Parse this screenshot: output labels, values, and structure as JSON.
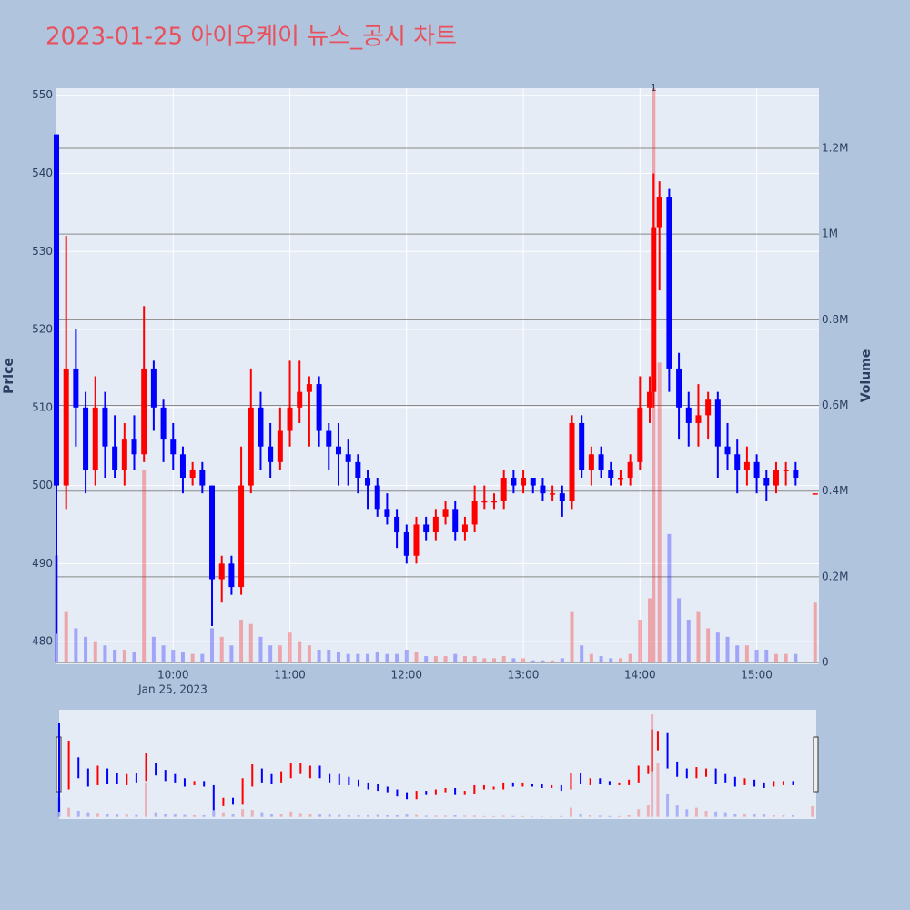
{
  "chart_data": {
    "type": "candlestick",
    "title": "2023-01-25 아이오케이 뉴스_공시 차트",
    "y_label": "Price",
    "y2_label": "Volume",
    "date_label": "Jan 25, 2023",
    "annotation": {
      "x": "14:07",
      "text": "1"
    },
    "increasing_color": "#ff0000",
    "decreasing_color": "#0000ff",
    "x": [
      "09:00",
      "09:05",
      "09:10",
      "09:15",
      "09:20",
      "09:25",
      "09:30",
      "09:35",
      "09:40",
      "09:45",
      "09:50",
      "09:55",
      "10:00",
      "10:05",
      "10:10",
      "10:15",
      "10:20",
      "10:25",
      "10:30",
      "10:35",
      "10:40",
      "10:45",
      "10:50",
      "10:55",
      "11:00",
      "11:05",
      "11:10",
      "11:15",
      "11:20",
      "11:25",
      "11:30",
      "11:35",
      "11:40",
      "11:45",
      "11:50",
      "11:55",
      "12:00",
      "12:05",
      "12:10",
      "12:15",
      "12:20",
      "12:25",
      "12:30",
      "12:35",
      "12:40",
      "12:45",
      "12:50",
      "12:55",
      "13:00",
      "13:05",
      "13:10",
      "13:15",
      "13:20",
      "13:25",
      "13:30",
      "13:35",
      "13:40",
      "13:45",
      "13:50",
      "13:55",
      "14:00",
      "14:05",
      "14:07",
      "14:10",
      "14:15",
      "14:20",
      "14:25",
      "14:30",
      "14:35",
      "14:40",
      "14:45",
      "14:50",
      "14:55",
      "15:00",
      "15:05",
      "15:10",
      "15:15",
      "15:20",
      "15:30"
    ],
    "open": [
      545,
      500,
      515,
      510,
      502,
      510,
      505,
      502,
      506,
      504,
      515,
      510,
      506,
      504,
      501,
      502,
      500,
      488,
      490,
      487,
      500,
      510,
      505,
      503,
      507,
      510,
      512,
      513,
      507,
      505,
      504,
      503,
      501,
      500,
      497,
      496,
      494,
      491,
      495,
      494,
      496,
      497,
      494,
      495,
      498,
      498,
      498,
      501,
      500,
      501,
      500,
      499,
      499,
      498,
      508,
      502,
      504,
      502,
      501,
      501,
      503,
      510,
      512,
      533,
      537,
      515,
      510,
      508,
      509,
      511,
      505,
      504,
      502,
      503,
      501,
      500,
      502,
      502,
      499
    ],
    "high": [
      545,
      532,
      520,
      512,
      514,
      512,
      509,
      508,
      509,
      523,
      516,
      511,
      508,
      505,
      503,
      503,
      500,
      491,
      491,
      505,
      515,
      512,
      508,
      510,
      516,
      516,
      514,
      514,
      508,
      508,
      506,
      504,
      502,
      501,
      499,
      497,
      495,
      496,
      496,
      497,
      498,
      498,
      496,
      500,
      500,
      499,
      502,
      502,
      502,
      501,
      501,
      500,
      500,
      509,
      509,
      505,
      505,
      503,
      502,
      504,
      514,
      514,
      540,
      539,
      538,
      517,
      512,
      513,
      512,
      512,
      508,
      506,
      505,
      504,
      502,
      503,
      503,
      503,
      499
    ],
    "low": [
      481,
      497,
      505,
      499,
      500,
      501,
      501,
      500,
      502,
      503,
      507,
      503,
      502,
      499,
      500,
      499,
      482,
      485,
      486,
      486,
      499,
      502,
      501,
      502,
      505,
      508,
      505,
      505,
      502,
      500,
      500,
      499,
      497,
      496,
      495,
      492,
      490,
      490,
      493,
      493,
      495,
      493,
      493,
      494,
      497,
      497,
      497,
      499,
      499,
      499,
      498,
      498,
      496,
      497,
      501,
      500,
      501,
      500,
      500,
      500,
      502,
      508,
      510,
      525,
      512,
      506,
      505,
      505,
      506,
      501,
      502,
      499,
      500,
      499,
      498,
      499,
      500,
      500,
      499
    ],
    "close": [
      500,
      515,
      510,
      502,
      510,
      505,
      502,
      506,
      504,
      515,
      510,
      506,
      504,
      501,
      502,
      500,
      488,
      490,
      487,
      500,
      510,
      505,
      503,
      507,
      510,
      512,
      513,
      507,
      505,
      504,
      503,
      501,
      500,
      497,
      496,
      494,
      491,
      495,
      494,
      496,
      497,
      494,
      495,
      498,
      498,
      498,
      501,
      500,
      501,
      500,
      499,
      499,
      498,
      508,
      502,
      504,
      502,
      501,
      501,
      503,
      510,
      512,
      533,
      537,
      515,
      510,
      508,
      509,
      511,
      505,
      504,
      502,
      503,
      501,
      500,
      502,
      502,
      501,
      499
    ],
    "volume": [
      250000,
      120000,
      80000,
      60000,
      50000,
      40000,
      30000,
      30000,
      25000,
      450000,
      60000,
      40000,
      30000,
      25000,
      20000,
      20000,
      80000,
      60000,
      40000,
      100000,
      90000,
      60000,
      40000,
      40000,
      70000,
      50000,
      40000,
      30000,
      30000,
      25000,
      20000,
      20000,
      20000,
      25000,
      20000,
      20000,
      30000,
      25000,
      15000,
      15000,
      15000,
      20000,
      15000,
      15000,
      10000,
      10000,
      15000,
      10000,
      10000,
      5000,
      5000,
      5000,
      10000,
      120000,
      40000,
      20000,
      15000,
      10000,
      10000,
      20000,
      100000,
      150000,
      1340000,
      700000,
      300000,
      150000,
      100000,
      120000,
      80000,
      70000,
      60000,
      40000,
      40000,
      30000,
      30000,
      20000,
      20000,
      20000,
      140000
    ],
    "xlim": [
      "09:00",
      "15:32"
    ],
    "xticks": [
      "10:00",
      "11:00",
      "12:00",
      "13:00",
      "14:00",
      "15:00"
    ],
    "ylim": [
      477.1,
      550.9
    ],
    "yticks": [
      480,
      490,
      500,
      510,
      520,
      530,
      540,
      550
    ],
    "y2lim": [
      -4000,
      1340000
    ],
    "y2ticks": [
      0,
      {
        "value": 200000,
        "label": "0.2M"
      },
      {
        "value": 400000,
        "label": "0.4M"
      },
      {
        "value": 600000,
        "label": "0.6M"
      },
      {
        "value": 800000,
        "label": "0.8M"
      },
      {
        "value": 1000000,
        "label": "1M"
      },
      {
        "value": 1200000,
        "label": "1.2M"
      }
    ],
    "grid": true,
    "rangeslider": true
  }
}
